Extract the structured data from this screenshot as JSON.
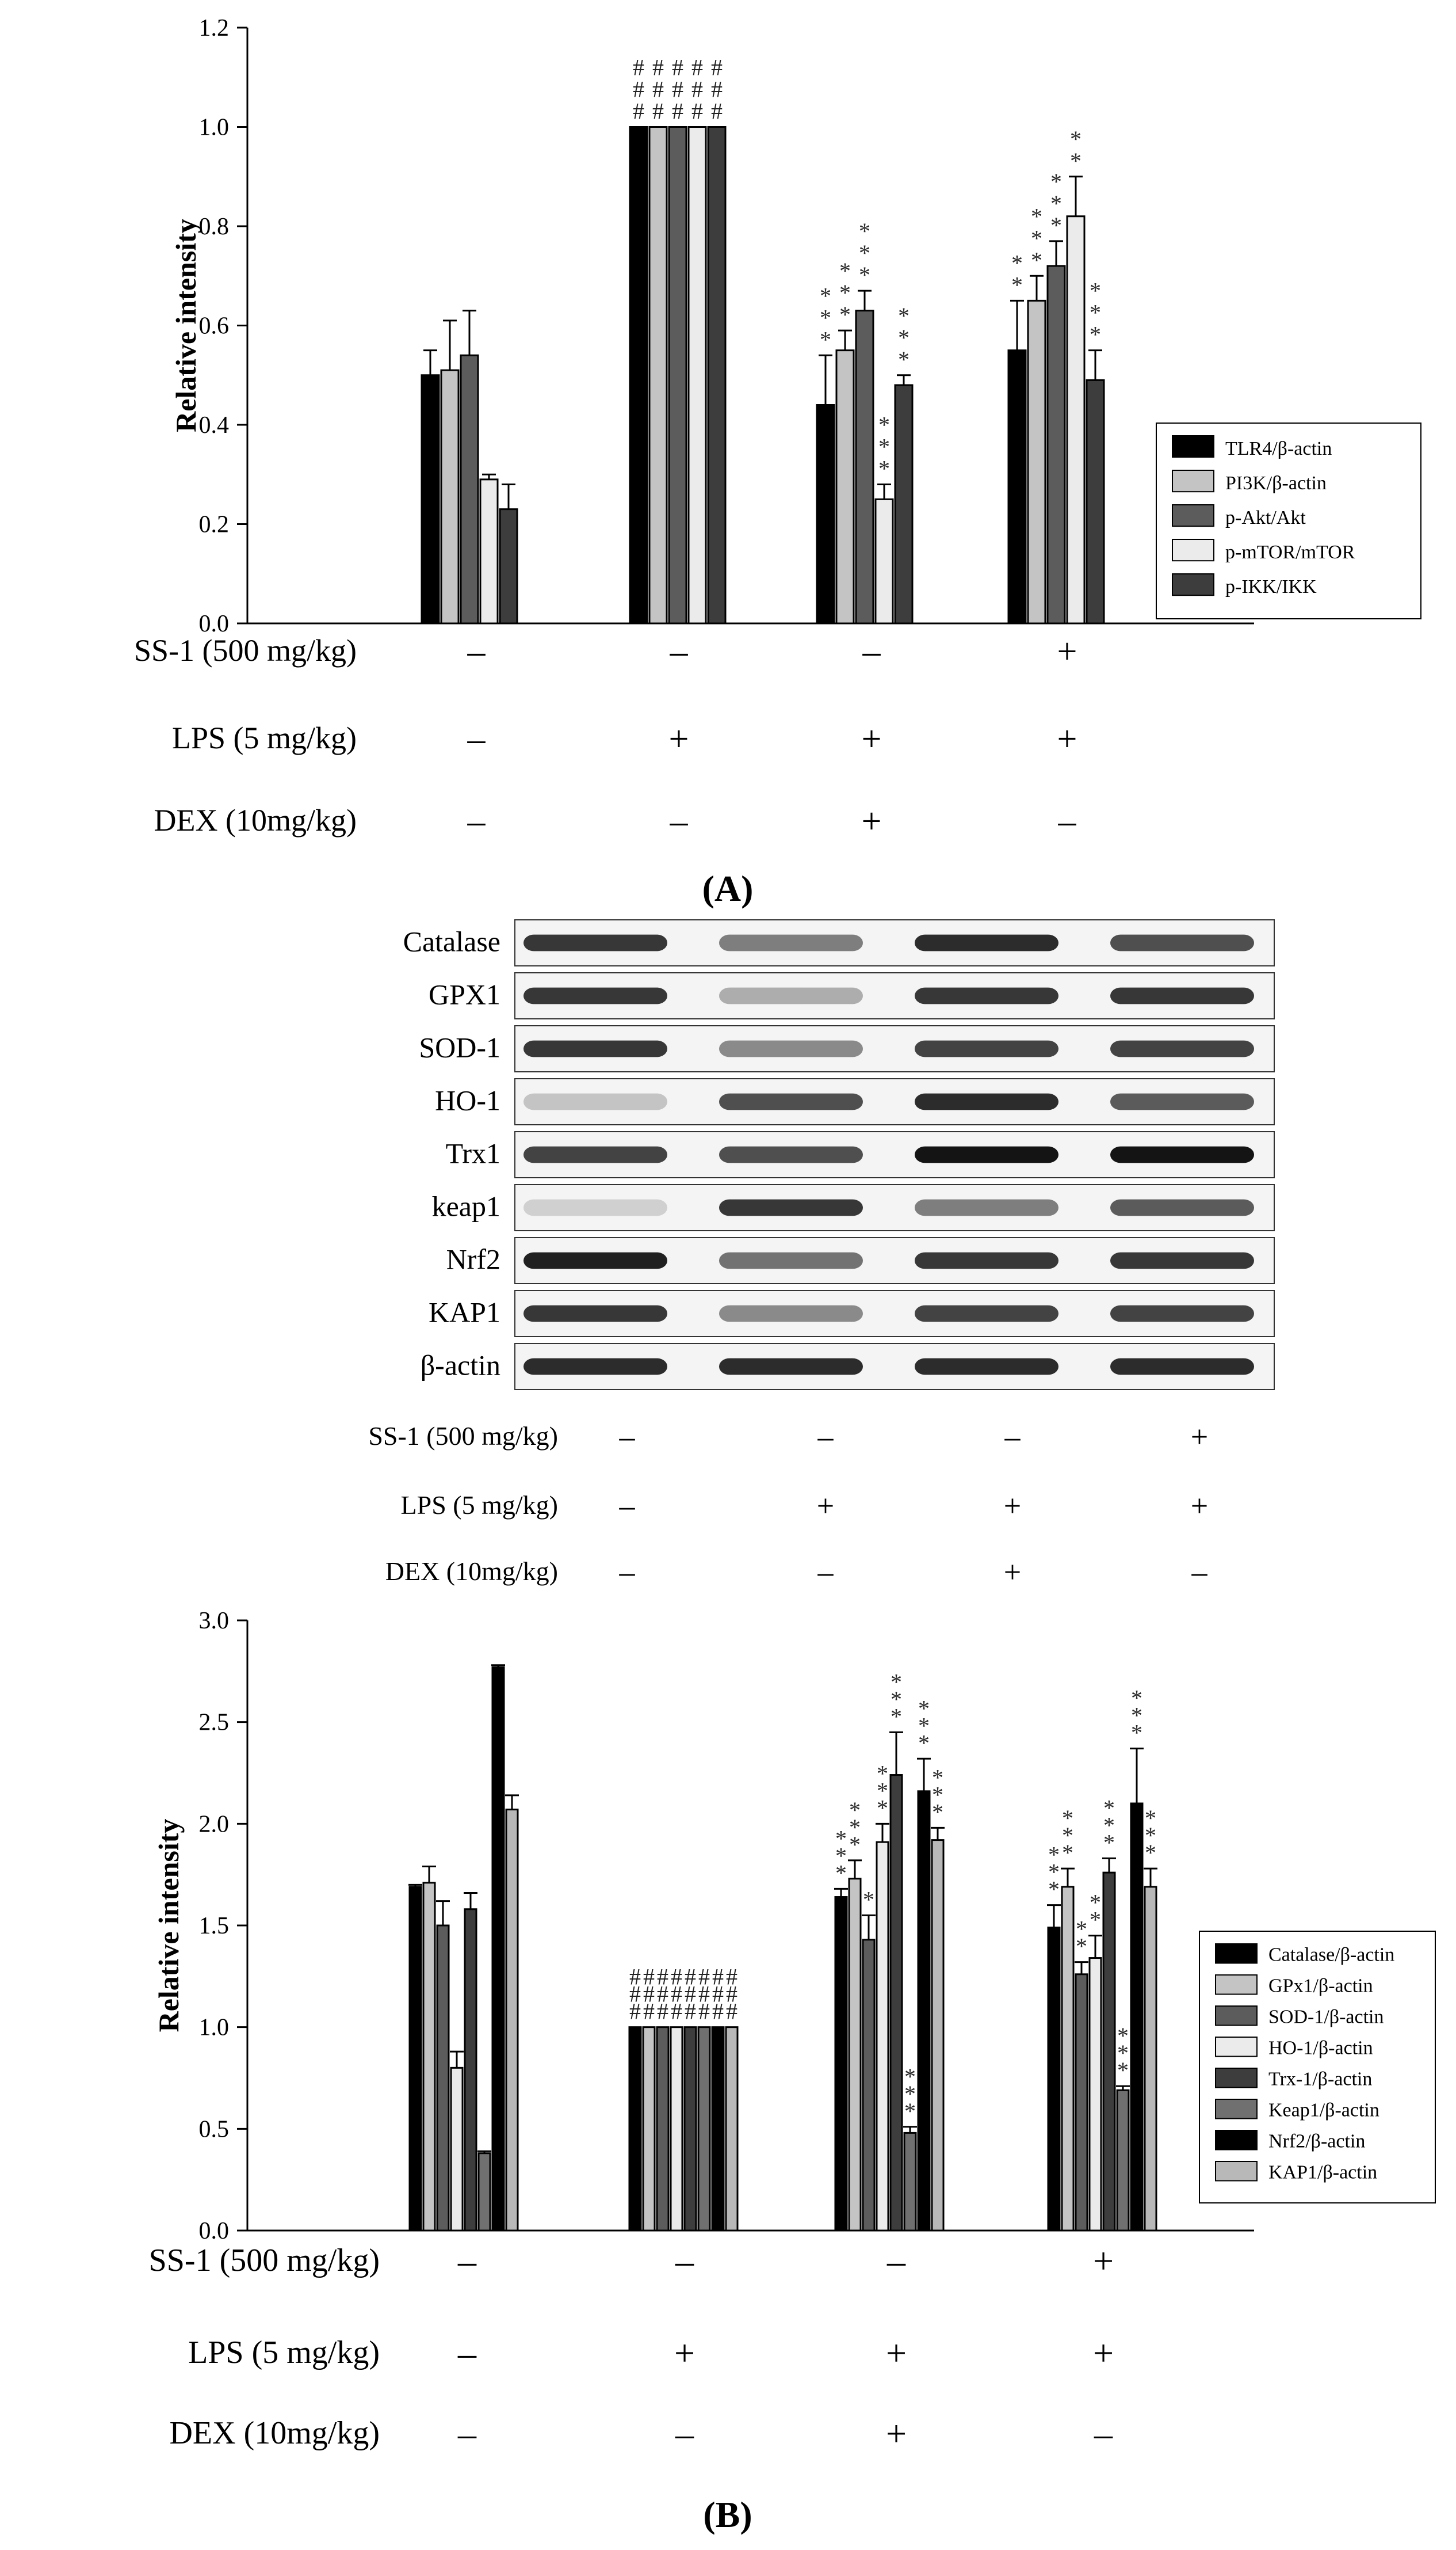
{
  "panels": [
    {
      "label": "(A)",
      "conditions": [
        {
          "name": "SS-1 (500 mg/kg)",
          "values": [
            "-",
            "-",
            "-",
            "+"
          ]
        },
        {
          "name": "LPS (5 mg/kg)",
          "values": [
            "-",
            "+",
            "+",
            "+"
          ]
        },
        {
          "name": "DEX (10mg/kg)",
          "values": [
            "-",
            "-",
            "+",
            "-"
          ]
        }
      ]
    },
    {
      "label": "(B)",
      "blot_proteins": [
        "Catalase",
        "GPX1",
        "SOD-1",
        "HO-1",
        "Trx1",
        "keap1",
        "Nrf2",
        "KAP1",
        "β-actin"
      ],
      "blot_intensity": [
        [
          0.85,
          0.55,
          0.9,
          0.75
        ],
        [
          0.85,
          0.35,
          0.85,
          0.85
        ],
        [
          0.85,
          0.5,
          0.8,
          0.8
        ],
        [
          0.25,
          0.75,
          0.9,
          0.7
        ],
        [
          0.8,
          0.75,
          1.0,
          1.0
        ],
        [
          0.2,
          0.85,
          0.55,
          0.7
        ],
        [
          0.95,
          0.6,
          0.85,
          0.85
        ],
        [
          0.85,
          0.5,
          0.8,
          0.8
        ],
        [
          0.9,
          0.9,
          0.9,
          0.9
        ]
      ],
      "conditions": [
        {
          "name": "SS-1 (500 mg/kg)",
          "values": [
            "-",
            "-",
            "-",
            "+"
          ]
        },
        {
          "name": "LPS (5 mg/kg)",
          "values": [
            "-",
            "+",
            "+",
            "+"
          ]
        },
        {
          "name": "DEX (10mg/kg)",
          "values": [
            "-",
            "-",
            "+",
            "-"
          ]
        }
      ]
    }
  ],
  "chart_data": [
    {
      "type": "bar",
      "ylabel": "Relative intensity",
      "ylim": [
        0,
        1.2
      ],
      "yticks": [
        "0.0",
        "0.2",
        "0.4",
        "0.6",
        "0.8",
        "1.0",
        "1.2"
      ],
      "legend_position": "right",
      "series": [
        {
          "name": "TLR4/β-actin",
          "color": "#000000",
          "values": [
            0.5,
            1.0,
            0.44,
            0.55
          ],
          "errors": [
            0.05,
            0,
            0.1,
            0.1
          ],
          "annotations": [
            "",
            "###",
            "***",
            "**"
          ]
        },
        {
          "name": "PI3K/β-actin",
          "color": "#c4c4c4",
          "values": [
            0.51,
            1.0,
            0.55,
            0.65
          ],
          "errors": [
            0.1,
            0,
            0.04,
            0.05
          ],
          "annotations": [
            "",
            "###",
            "***",
            "***"
          ]
        },
        {
          "name": "p-Akt/Akt",
          "color": "#5c5c5c",
          "values": [
            0.54,
            1.0,
            0.63,
            0.72
          ],
          "errors": [
            0.09,
            0,
            0.04,
            0.05
          ],
          "annotations": [
            "",
            "###",
            "***",
            "***"
          ]
        },
        {
          "name": "p-mTOR/mTOR",
          "color": "#ebebeb",
          "values": [
            0.29,
            1.0,
            0.25,
            0.82
          ],
          "errors": [
            0.01,
            0,
            0.03,
            0.08
          ],
          "annotations": [
            "",
            "###",
            "***",
            "**"
          ]
        },
        {
          "name": "p-IKK/IKK",
          "color": "#3d3d3d",
          "values": [
            0.23,
            1.0,
            0.48,
            0.49
          ],
          "errors": [
            0.05,
            0,
            0.02,
            0.06
          ],
          "annotations": [
            "",
            "###",
            "***",
            "***"
          ]
        }
      ]
    },
    {
      "type": "bar",
      "ylabel": "Relative intensity",
      "ylim": [
        0,
        3.0
      ],
      "yticks": [
        "0.0",
        "0.5",
        "1.0",
        "1.5",
        "2.0",
        "2.5",
        "3.0"
      ],
      "legend_position": "right",
      "series": [
        {
          "name": "Catalase/β-actin",
          "color": "#000000",
          "values": [
            1.69,
            1.0,
            1.64,
            1.49
          ],
          "errors": [
            0.01,
            0,
            0.04,
            0.11
          ],
          "annotations": [
            "",
            "###",
            "***",
            "***"
          ]
        },
        {
          "name": "GPx1/β-actin",
          "color": "#c4c4c4",
          "values": [
            1.71,
            1.0,
            1.73,
            1.69
          ],
          "errors": [
            0.08,
            0,
            0.09,
            0.09
          ],
          "annotations": [
            "",
            "###",
            "***",
            "***"
          ]
        },
        {
          "name": "SOD-1/β-actin",
          "color": "#5c5c5c",
          "values": [
            1.5,
            1.0,
            1.43,
            1.26
          ],
          "errors": [
            0.12,
            0,
            0.12,
            0.06
          ],
          "annotations": [
            "",
            "###",
            "*",
            "**"
          ]
        },
        {
          "name": "HO-1/β-actin",
          "color": "#ebebeb",
          "values": [
            0.8,
            1.0,
            1.91,
            1.34
          ],
          "errors": [
            0.08,
            0,
            0.09,
            0.11
          ],
          "annotations": [
            "",
            "###",
            "***",
            "**"
          ]
        },
        {
          "name": "Trx-1/β-actin",
          "color": "#3d3d3d",
          "values": [
            1.58,
            1.0,
            2.24,
            1.76
          ],
          "errors": [
            0.08,
            0,
            0.21,
            0.07
          ],
          "annotations": [
            "",
            "###",
            "***",
            "***"
          ]
        },
        {
          "name": "Keap1/β-actin",
          "color": "#707070",
          "values": [
            0.38,
            1.0,
            0.48,
            0.69
          ],
          "errors": [
            0.01,
            0,
            0.03,
            0.02
          ],
          "annotations": [
            "",
            "###",
            "***",
            "***"
          ]
        },
        {
          "name": "Nrf2/β-actin",
          "color": "#000000",
          "values": [
            2.77,
            1.0,
            2.16,
            2.1
          ],
          "errors": [
            0.01,
            0,
            0.16,
            0.27
          ],
          "annotations": [
            "",
            "###",
            "***",
            "***"
          ]
        },
        {
          "name": "KAP1/β-actin",
          "color": "#b8b8b8",
          "values": [
            2.07,
            1.0,
            1.92,
            1.69
          ],
          "errors": [
            0.07,
            0,
            0.06,
            0.09
          ],
          "annotations": [
            "",
            "###",
            "***",
            "***"
          ]
        }
      ]
    }
  ]
}
